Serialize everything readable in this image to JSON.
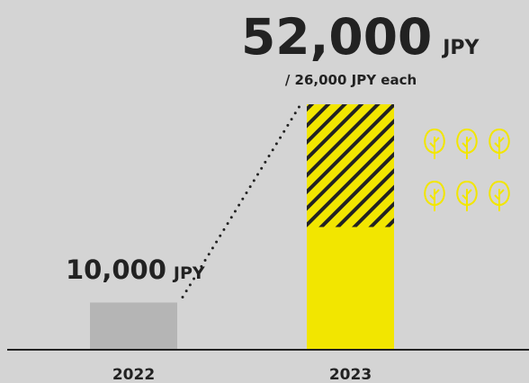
{
  "chart_data": {
    "type": "bar",
    "categories": [
      "2022",
      "2023"
    ],
    "values": [
      10000,
      52000
    ],
    "value_labels": [
      "10,000",
      "52,000"
    ],
    "unit": "JPY",
    "segment_label": "/ 26,000 JPY each",
    "segment_values": [
      26000,
      26000
    ],
    "colors": [
      "#b5b5b5",
      "#f2e600"
    ],
    "ylim": [
      0,
      52000
    ]
  }
}
